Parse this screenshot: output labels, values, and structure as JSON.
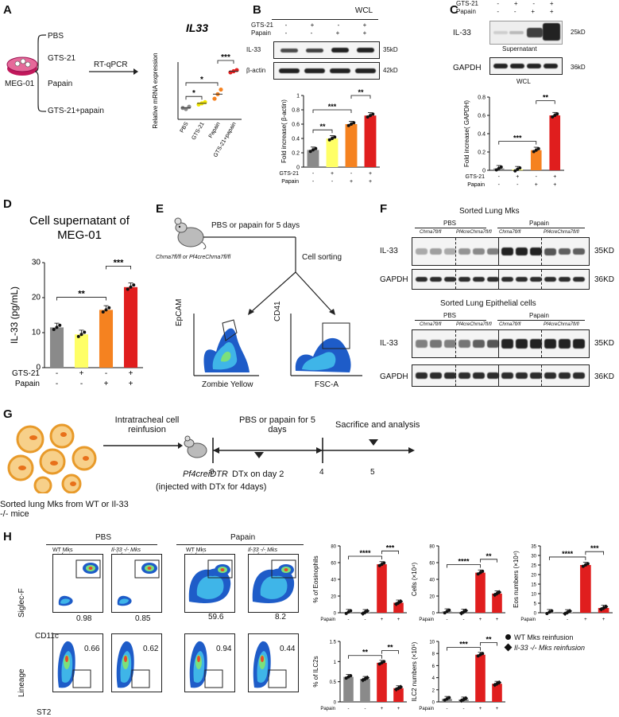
{
  "panels": [
    "A",
    "B",
    "C",
    "D",
    "E",
    "F",
    "G",
    "H"
  ],
  "A": {
    "cell_line": "MEG-01",
    "assay": "RT-qPCR",
    "treatments": [
      "PBS",
      "GTS-21",
      "Papain",
      "GTS-21+papain"
    ],
    "chart_data": {
      "type": "scatter",
      "title": "IL33",
      "ylabel": "Relative mRNA expression",
      "categories": [
        "PBS",
        "GTS-21",
        "Papain",
        "GTS-21+papain"
      ],
      "values": [
        1.0,
        1.4,
        2.2,
        4.2
      ],
      "points": [
        [
          1.0,
          0.9,
          1.1
        ],
        [
          1.3,
          1.4,
          1.5
        ],
        [
          1.8,
          2.2,
          2.6
        ],
        [
          4.1,
          4.2,
          4.3
        ]
      ],
      "colors": [
        "#8a8a8a",
        "#f2e600",
        "#f58220",
        "#e01e1e"
      ],
      "ylim": [
        0,
        5
      ],
      "significance": [
        {
          "pair": [
            0,
            1
          ],
          "label": "*"
        },
        {
          "pair": [
            0,
            2
          ],
          "label": "*"
        },
        {
          "pair": [
            2,
            3
          ],
          "label": "***"
        }
      ]
    }
  },
  "B": {
    "header": "WCL",
    "row_labels": [
      "GTS-21",
      "Papain"
    ],
    "gts21": [
      "-",
      "+",
      "-",
      "+"
    ],
    "papain": [
      "-",
      "-",
      "+",
      "+"
    ],
    "blots": [
      {
        "name": "IL-33",
        "mw": "35kD"
      },
      {
        "name": "β-actin",
        "mw": "42kD"
      }
    ],
    "chart_data": {
      "type": "bar",
      "ylabel": "Fold increase( β-actin)",
      "row_labels": [
        "GTS-21",
        "Papain"
      ],
      "gts21": [
        "-",
        "+",
        "-",
        "+"
      ],
      "papain": [
        "-",
        "-",
        "+",
        "+"
      ],
      "values": [
        0.24,
        0.4,
        0.6,
        0.72
      ],
      "colors": [
        "#8a8a8a",
        "#ffff66",
        "#f58220",
        "#e01e1e"
      ],
      "ylim": [
        0,
        1.0
      ],
      "yticks": [
        0.0,
        0.2,
        0.4,
        0.6,
        0.8,
        1.0
      ],
      "significance": [
        {
          "pair": [
            0,
            1
          ],
          "label": "**"
        },
        {
          "pair": [
            0,
            2
          ],
          "label": "***"
        },
        {
          "pair": [
            2,
            3
          ],
          "label": "**"
        }
      ]
    }
  },
  "C": {
    "row_labels": [
      "GTS-21",
      "Papain"
    ],
    "gts21": [
      "-",
      "+",
      "-",
      "+"
    ],
    "papain": [
      "-",
      "-",
      "+",
      "+"
    ],
    "blots": [
      {
        "name": "IL-33",
        "mw": "25kD",
        "caption": "Supernatant"
      },
      {
        "name": "GAPDH",
        "mw": "36kD",
        "caption": "WCL"
      }
    ],
    "chart_data": {
      "type": "bar",
      "ylabel": "Fold increase( GAPDH)",
      "row_labels": [
        "GTS-21",
        "Papain"
      ],
      "gts21": [
        "-",
        "+",
        "-",
        "+"
      ],
      "papain": [
        "-",
        "-",
        "+",
        "+"
      ],
      "values": [
        0.02,
        0.01,
        0.22,
        0.6
      ],
      "colors": [
        "#8a8a8a",
        "#ffff66",
        "#f58220",
        "#e01e1e"
      ],
      "ylim": [
        0,
        0.8
      ],
      "yticks": [
        0.0,
        0.2,
        0.4,
        0.6,
        0.8
      ],
      "significance": [
        {
          "pair": [
            0,
            2
          ],
          "label": "***"
        },
        {
          "pair": [
            2,
            3
          ],
          "label": "**"
        }
      ]
    }
  },
  "D": {
    "chart_data": {
      "type": "bar",
      "title": "Cell supernatant of MEG-01",
      "title_lines": [
        "Cell supernatant of",
        "MEG-01"
      ],
      "ylabel": "IL-33 (pg/mL)",
      "row_labels": [
        "GTS-21",
        "Papain"
      ],
      "gts21": [
        "-",
        "+",
        "-",
        "+"
      ],
      "papain": [
        "-",
        "-",
        "+",
        "+"
      ],
      "values": [
        11.5,
        9.5,
        16.5,
        23.0
      ],
      "colors": [
        "#8a8a8a",
        "#ffff66",
        "#f58220",
        "#e01e1e"
      ],
      "ylim": [
        0,
        30
      ],
      "yticks": [
        0,
        10,
        20,
        30
      ],
      "significance": [
        {
          "pair": [
            0,
            2
          ],
          "label": "**"
        },
        {
          "pair": [
            2,
            3
          ],
          "label": "***"
        }
      ]
    }
  },
  "E": {
    "mouse_label": "Chrna7fl/fl or Pf4creChrna7fl/fl",
    "treatment": "PBS or papain for 5 days",
    "step": "Cell sorting",
    "plot1": {
      "x": "Zombie Yellow",
      "y": "EpCAM"
    },
    "plot2": {
      "x": "FSC-A",
      "y": "CD41"
    }
  },
  "F": {
    "title1": "Sorted Lung Mks",
    "title2": "Sorted Lung Epithelial cells",
    "group1": "PBS",
    "group2": "Papain",
    "genotype_a": "Chrna7fl/fl",
    "genotype_b": "Pf4creChrna7fl/fl",
    "blots": [
      {
        "name": "IL-33",
        "mw": "35KD"
      },
      {
        "name": "GAPDH",
        "mw": "36KD"
      }
    ]
  },
  "G": {
    "step1": "Intratracheal cell reinfusion",
    "source": "Sorted lung Mks from WT or Il-33 -/- mice",
    "mouse": "Pf4creiDTR",
    "mouse_note": "(injected with DTx for 4days)",
    "treatment": "PBS or papain for 5 days",
    "dtx": "DTx on day 2",
    "endpoint": "Sacrifice and analysis",
    "days": [
      "0",
      "2",
      "4",
      "5"
    ]
  },
  "H": {
    "group1": "PBS",
    "group2": "Papain",
    "col_labels": [
      "WT Mks reinfusion",
      "Il-33 -/- Mks reinfusion"
    ],
    "row1_axes": {
      "x": "CD11c",
      "y": "Siglec-F"
    },
    "row2_axes": {
      "x": "ST2",
      "y": "Lineage"
    },
    "row1_values": [
      "0.98",
      "0.85",
      "59.6",
      "8.2"
    ],
    "row2_values": [
      "0.66",
      "0.62",
      "0.94",
      "0.44"
    ],
    "legend": [
      "WT Mks reinfusion",
      "Il-33 -/- Mks reinfusion"
    ],
    "chart_data": [
      {
        "type": "bar",
        "ylabel": "% of Eosinophils",
        "row_label": "Papain",
        "papain": [
          "-",
          "-",
          "+",
          "+"
        ],
        "values": [
          0.8,
          0.6,
          58,
          12
        ],
        "ylim": [
          0,
          80
        ],
        "yticks": [
          0,
          20,
          40,
          60,
          80
        ],
        "colors": [
          "#8a8a8a",
          "#8a8a8a",
          "#e01e1e",
          "#e01e1e"
        ],
        "significance": [
          {
            "pair": [
              0,
              2
            ],
            "label": "****"
          },
          {
            "pair": [
              2,
              3
            ],
            "label": "***"
          }
        ]
      },
      {
        "type": "bar",
        "ylabel": "Cells (×10⁴)",
        "row_label": "Papain",
        "papain": [
          "-",
          "-",
          "+",
          "+"
        ],
        "values": [
          1.5,
          1.0,
          48,
          23
        ],
        "ylim": [
          0,
          80
        ],
        "yticks": [
          0,
          20,
          40,
          60,
          80
        ],
        "colors": [
          "#8a8a8a",
          "#8a8a8a",
          "#e01e1e",
          "#e01e1e"
        ],
        "significance": [
          {
            "pair": [
              0,
              2
            ],
            "label": "****"
          },
          {
            "pair": [
              2,
              3
            ],
            "label": "**"
          }
        ]
      },
      {
        "type": "bar",
        "ylabel": "Eos numbers (×10⁴)",
        "row_label": "Papain",
        "papain": [
          "-",
          "-",
          "+",
          "+"
        ],
        "values": [
          0.3,
          0.2,
          25,
          2.5
        ],
        "ylim": [
          0,
          35
        ],
        "yticks": [
          0,
          5,
          10,
          15,
          20,
          25,
          30,
          35
        ],
        "colors": [
          "#8a8a8a",
          "#8a8a8a",
          "#e01e1e",
          "#e01e1e"
        ],
        "significance": [
          {
            "pair": [
              0,
              2
            ],
            "label": "****"
          },
          {
            "pair": [
              2,
              3
            ],
            "label": "***"
          }
        ]
      },
      {
        "type": "bar",
        "ylabel": "% of ILC2s",
        "row_label": "Papain",
        "papain": [
          "-",
          "-",
          "+",
          "+"
        ],
        "values": [
          0.62,
          0.57,
          0.97,
          0.34
        ],
        "ylim": [
          0,
          1.5
        ],
        "yticks": [
          0.0,
          0.5,
          1.0,
          1.5
        ],
        "colors": [
          "#8a8a8a",
          "#8a8a8a",
          "#e01e1e",
          "#e01e1e"
        ],
        "significance": [
          {
            "pair": [
              0,
              2
            ],
            "label": "**"
          },
          {
            "pair": [
              2,
              3
            ],
            "label": "**"
          }
        ]
      },
      {
        "type": "bar",
        "ylabel": "ILC2 numbers (×10⁵)",
        "row_label": "Papain",
        "papain": [
          "-",
          "-",
          "+",
          "+"
        ],
        "values": [
          0.5,
          0.4,
          7.8,
          3.0
        ],
        "ylim": [
          0,
          10
        ],
        "yticks": [
          0,
          2,
          4,
          6,
          8,
          10
        ],
        "colors": [
          "#8a8a8a",
          "#8a8a8a",
          "#e01e1e",
          "#e01e1e"
        ],
        "significance": [
          {
            "pair": [
              0,
              2
            ],
            "label": "***"
          },
          {
            "pair": [
              2,
              3
            ],
            "label": "**"
          }
        ]
      }
    ]
  }
}
